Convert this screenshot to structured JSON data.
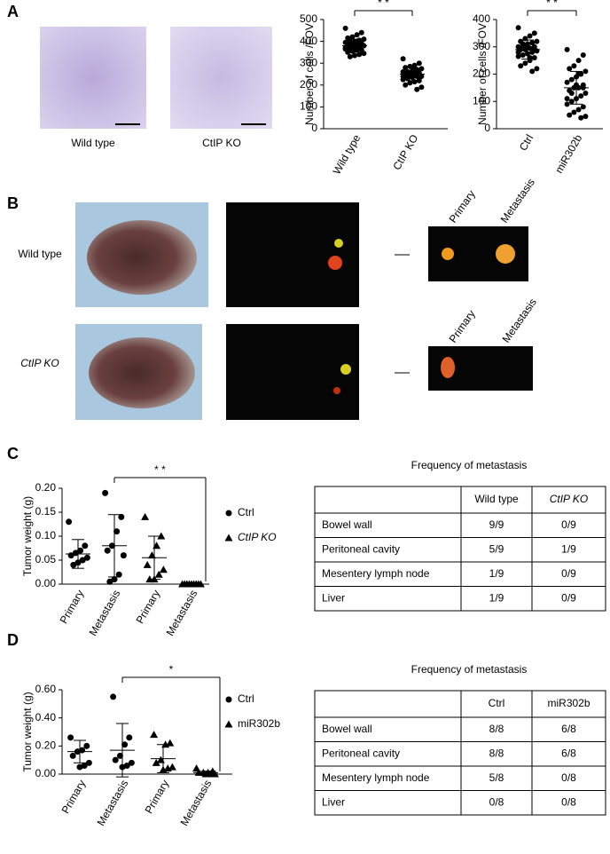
{
  "panel_labels": [
    "A",
    "B",
    "C",
    "D"
  ],
  "panel_a": {
    "captions": [
      "Wild type",
      "CtIP KO"
    ]
  },
  "panel_b": {
    "rows": [
      {
        "label": "Wild type",
        "primary": "Primary",
        "metastasis": "Metastasis"
      },
      {
        "label": "CtIP KO",
        "primary": "Primary",
        "metastasis": "Metastasis"
      }
    ]
  },
  "chart_data": [
    {
      "type": "dot",
      "ylabel": "Number of cells /FOV",
      "significance": "* *",
      "categories": [
        "Wild type",
        "CtIP KO"
      ],
      "ylim": [
        0,
        500
      ],
      "yticks": [
        0,
        100,
        200,
        300,
        400,
        500
      ],
      "series": [
        {
          "marker": "circle",
          "color": "#000000",
          "groups": [
            {
              "values": [
                460,
                440,
                430,
                420,
                415,
                410,
                405,
                400,
                400,
                395,
                390,
                390,
                385,
                380,
                380,
                375,
                370,
                370,
                365,
                360,
                360,
                355,
                350,
                345,
                340,
                335,
                330,
                370,
                390,
                400
              ],
              "mean": 380,
              "sd": 30
            },
            {
              "values": [
                320,
                300,
                290,
                285,
                280,
                275,
                270,
                265,
                260,
                260,
                255,
                250,
                250,
                245,
                240,
                240,
                235,
                230,
                225,
                220,
                215,
                210,
                200,
                190,
                180,
                250,
                260,
                240,
                230,
                270
              ],
              "mean": 250,
              "sd": 30
            }
          ]
        }
      ]
    },
    {
      "type": "dot",
      "ylabel": "Number of cells /FOV",
      "significance": "* *",
      "categories": [
        "Ctrl",
        "miR302b"
      ],
      "ylim": [
        0,
        400
      ],
      "yticks": [
        0,
        100,
        200,
        300,
        400
      ],
      "series": [
        {
          "marker": "circle",
          "color": "#000000",
          "groups": [
            {
              "values": [
                370,
                350,
                340,
                330,
                320,
                320,
                315,
                310,
                305,
                300,
                300,
                295,
                290,
                290,
                285,
                280,
                275,
                270,
                265,
                260,
                250,
                240,
                230,
                220,
                210,
                300,
                310,
                280,
                290,
                260
              ],
              "mean": 290,
              "sd": 35
            },
            {
              "values": [
                290,
                270,
                250,
                230,
                220,
                210,
                200,
                190,
                180,
                170,
                160,
                150,
                150,
                140,
                130,
                120,
                110,
                100,
                90,
                80,
                70,
                60,
                50,
                45,
                40,
                160,
                130,
                110,
                150,
                200
              ],
              "mean": 150,
              "sd": 60
            }
          ]
        }
      ]
    },
    {
      "type": "dot",
      "ylabel": "Tumor weight (g)",
      "significance": "* *",
      "categories": [
        "Primary",
        "Metastasis",
        "Primary",
        "Metastasis"
      ],
      "ylim": [
        0,
        0.2
      ],
      "yticks": [
        {
          "value": 0,
          "label": "0.00"
        },
        {
          "value": 0.05,
          "label": "0.05"
        },
        {
          "value": 0.1,
          "label": "0.10"
        },
        {
          "value": 0.15,
          "label": "0.15"
        },
        {
          "value": 0.2,
          "label": "0.20"
        }
      ],
      "series": [
        {
          "name": "Ctrl",
          "marker": "circle",
          "color": "#000000",
          "groups": [
            {
              "values": [
                0.13,
                0.08,
                0.07,
                0.065,
                0.06,
                0.055,
                0.05,
                0.045,
                0.04
              ],
              "mean": 0.063,
              "sd": 0.03
            },
            {
              "values": [
                0.19,
                0.14,
                0.11,
                0.08,
                0.07,
                0.06,
                0.02,
                0.01,
                0.005
              ],
              "mean": 0.08,
              "sd": 0.065
            }
          ]
        },
        {
          "name": "CtIP KO",
          "marker": "triangle",
          "color": "#000000",
          "groups": [
            {
              "values": [
                0.14,
                0.1,
                0.08,
                0.06,
                0.04,
                0.03,
                0.02,
                0.01,
                0.01
              ],
              "mean": 0.055,
              "sd": 0.045
            },
            {
              "values": [
                0,
                0,
                0,
                0,
                0,
                0,
                0,
                0,
                0
              ],
              "mean": 0,
              "sd": 0
            }
          ]
        }
      ]
    },
    {
      "type": "dot",
      "ylabel": "Tumor weight (g)",
      "significance": "*",
      "categories": [
        "Primary",
        "Metastasis",
        "Primary",
        "Metastasis"
      ],
      "ylim": [
        0,
        0.6
      ],
      "yticks": [
        {
          "value": 0,
          "label": "0.00"
        },
        {
          "value": 0.2,
          "label": "0.20"
        },
        {
          "value": 0.4,
          "label": "0.40"
        },
        {
          "value": 0.6,
          "label": "0.60"
        }
      ],
      "series": [
        {
          "name": "Ctrl",
          "marker": "circle",
          "color": "#000000",
          "groups": [
            {
              "values": [
                0.26,
                0.2,
                0.17,
                0.16,
                0.13,
                0.08,
                0.06,
                0.05
              ],
              "mean": 0.16,
              "sd": 0.08
            },
            {
              "values": [
                0.55,
                0.26,
                0.21,
                0.13,
                0.1,
                0.08,
                0.06,
                0.05
              ],
              "mean": 0.17,
              "sd": 0.19
            }
          ]
        },
        {
          "name": "miR302b",
          "marker": "triangle",
          "color": "#000000",
          "groups": [
            {
              "values": [
                0.28,
                0.22,
                0.21,
                0.1,
                0.08,
                0.05,
                0.04,
                0.03
              ],
              "mean": 0.11,
              "sd": 0.1
            },
            {
              "values": [
                0.04,
                0.02,
                0.01,
                0.01,
                0.01,
                0,
                0,
                0
              ],
              "mean": 0.01,
              "sd": 0.01
            }
          ]
        }
      ]
    }
  ],
  "tables": [
    {
      "title": "Frequency of metastasis",
      "columns": [
        "Wild type",
        "CtIP KO"
      ],
      "rows": [
        [
          "Bowel wall",
          "9/9",
          "0/9"
        ],
        [
          "Peritoneal cavity",
          "5/9",
          "1/9"
        ],
        [
          "Mesentery lymph node",
          "1/9",
          "0/9"
        ],
        [
          "Liver",
          "1/9",
          "0/9"
        ]
      ]
    },
    {
      "title": "Frequency of metastasis",
      "columns": [
        "Ctrl",
        "miR302b"
      ],
      "rows": [
        [
          "Bowel wall",
          "8/8",
          "6/8"
        ],
        [
          "Peritoneal cavity",
          "8/8",
          "6/8"
        ],
        [
          "Mesentery lymph node",
          "5/8",
          "0/8"
        ],
        [
          "Liver",
          "0/8",
          "0/8"
        ]
      ]
    }
  ]
}
